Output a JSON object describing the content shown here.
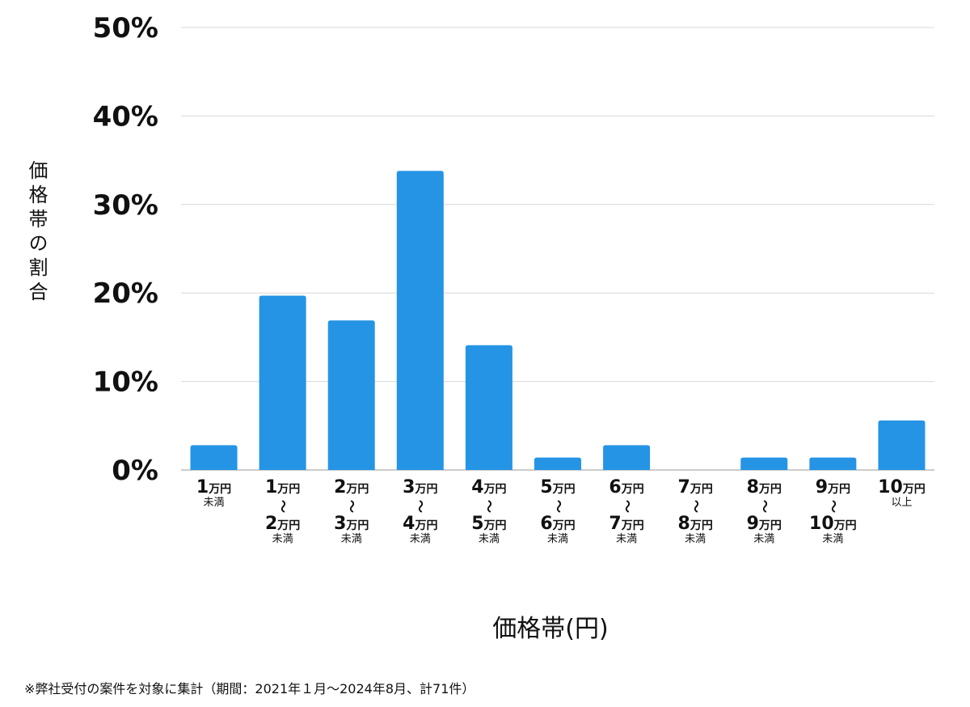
{
  "chart_data": {
    "type": "bar",
    "ylabel": "価格帯の割合",
    "xlabel": "価格帯(円)",
    "ylim": [
      0,
      50
    ],
    "yticks": [
      "0%",
      "10%",
      "20%",
      "30%",
      "40%",
      "50%"
    ],
    "ytick_values": [
      0,
      10,
      20,
      30,
      40,
      50
    ],
    "grid": true,
    "bar_color": "#2594e5",
    "categories": [
      {
        "from": "1",
        "unit": "万円",
        "to": "",
        "sep": "",
        "suffix": "未満"
      },
      {
        "from": "1",
        "unit": "万円",
        "to": "2",
        "sep": "〜",
        "suffix": "未満"
      },
      {
        "from": "2",
        "unit": "万円",
        "to": "3",
        "sep": "〜",
        "suffix": "未満"
      },
      {
        "from": "3",
        "unit": "万円",
        "to": "4",
        "sep": "〜",
        "suffix": "未満"
      },
      {
        "from": "4",
        "unit": "万円",
        "to": "5",
        "sep": "〜",
        "suffix": "未満"
      },
      {
        "from": "5",
        "unit": "万円",
        "to": "6",
        "sep": "〜",
        "suffix": "未満"
      },
      {
        "from": "6",
        "unit": "万円",
        "to": "7",
        "sep": "〜",
        "suffix": "未満"
      },
      {
        "from": "7",
        "unit": "万円",
        "to": "8",
        "sep": "〜",
        "suffix": "未満"
      },
      {
        "from": "8",
        "unit": "万円",
        "to": "9",
        "sep": "〜",
        "suffix": "未満"
      },
      {
        "from": "9",
        "unit": "万円",
        "to": "10",
        "sep": "〜",
        "suffix": "未満"
      },
      {
        "from": "10",
        "unit": "万円",
        "to": "",
        "sep": "",
        "suffix": "以上"
      }
    ],
    "values": [
      2.8,
      19.7,
      16.9,
      33.8,
      14.1,
      1.4,
      2.8,
      0,
      1.4,
      1.4,
      5.6
    ]
  },
  "footnote": "※弊社受付の案件を対象に集計（期間：2021年１月〜2024年8月、計71件）"
}
